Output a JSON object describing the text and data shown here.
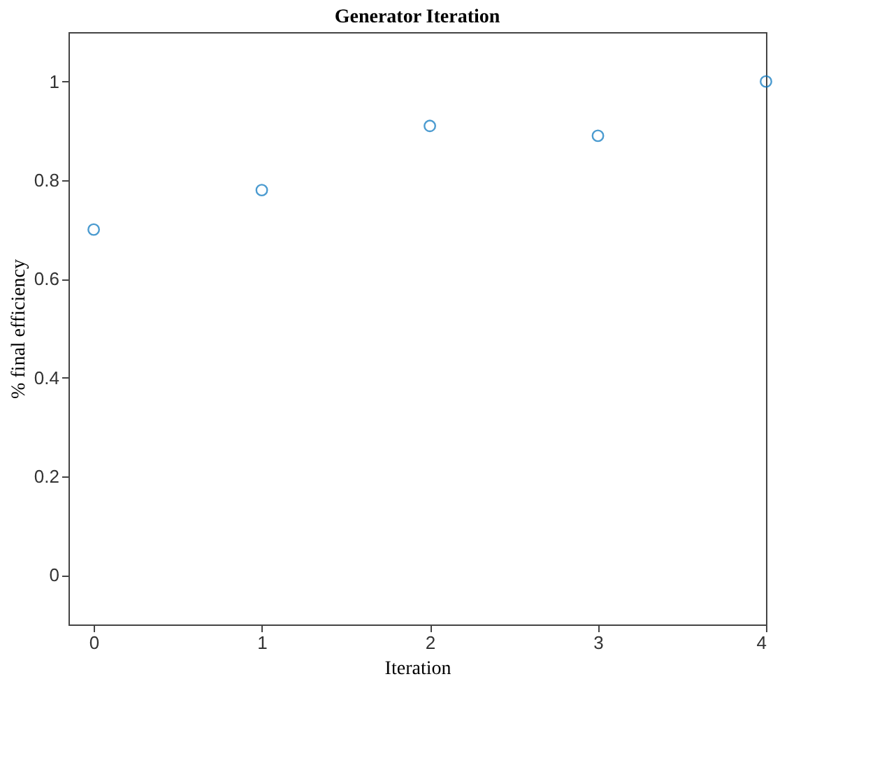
{
  "chart_data": {
    "type": "scatter",
    "title": "Generator Iteration",
    "xlabel": "Iteration",
    "ylabel": "% final efficiency",
    "x": [
      0,
      1,
      2,
      3,
      4
    ],
    "series": [
      {
        "color": "#0072bd",
        "values": [
          0.7,
          0.78,
          0.91,
          0.89,
          1.0
        ]
      }
    ],
    "xlim": [
      -0.15,
      4
    ],
    "ylim": [
      -0.1,
      1.1
    ],
    "xticks": [
      0,
      1,
      2,
      3,
      4
    ],
    "yticks": [
      0,
      0.2,
      0.4,
      0.6,
      0.8,
      1
    ],
    "marker": "circle"
  }
}
